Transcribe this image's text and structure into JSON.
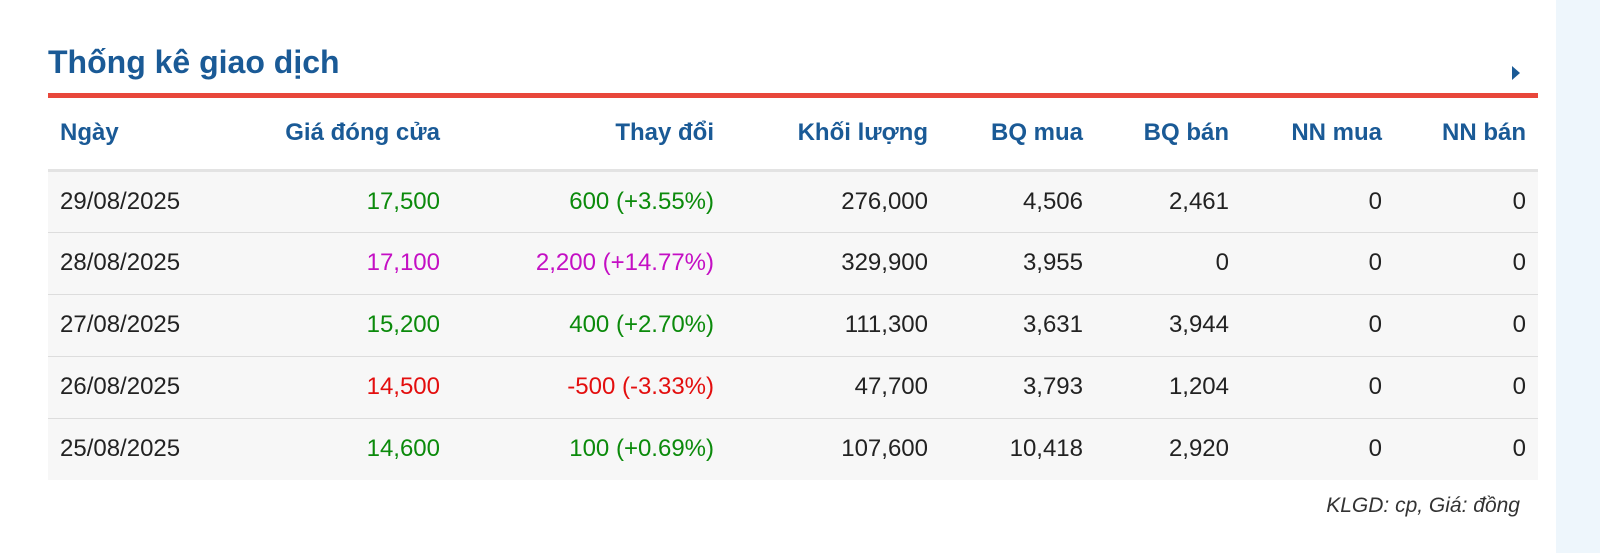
{
  "header": {
    "title": "Thống kê giao dịch"
  },
  "columns": [
    "Ngày",
    "Giá đóng cửa",
    "Thay đổi",
    "Khối lượng",
    "BQ mua",
    "BQ bán",
    "NN mua",
    "NN bán"
  ],
  "rows": [
    {
      "date": "29/08/2025",
      "close": "17,500",
      "change": "600 (+3.55%)",
      "status": "up",
      "volume": "276,000",
      "avg_buy": "4,506",
      "avg_sell": "2,461",
      "foreign_buy": "0",
      "foreign_sell": "0"
    },
    {
      "date": "28/08/2025",
      "close": "17,100",
      "change": "2,200 (+14.77%)",
      "status": "ceiling",
      "volume": "329,900",
      "avg_buy": "3,955",
      "avg_sell": "0",
      "foreign_buy": "0",
      "foreign_sell": "0"
    },
    {
      "date": "27/08/2025",
      "close": "15,200",
      "change": "400 (+2.70%)",
      "status": "up",
      "volume": "111,300",
      "avg_buy": "3,631",
      "avg_sell": "3,944",
      "foreign_buy": "0",
      "foreign_sell": "0"
    },
    {
      "date": "26/08/2025",
      "close": "14,500",
      "change": "-500 (-3.33%)",
      "status": "down",
      "volume": "47,700",
      "avg_buy": "3,793",
      "avg_sell": "1,204",
      "foreign_buy": "0",
      "foreign_sell": "0"
    },
    {
      "date": "25/08/2025",
      "close": "14,600",
      "change": "100 (+0.69%)",
      "status": "up",
      "volume": "107,600",
      "avg_buy": "10,418",
      "avg_sell": "2,920",
      "foreign_buy": "0",
      "foreign_sell": "0"
    }
  ],
  "footer_note": "KLGD: cp, Giá: đồng",
  "colors": {
    "accent": "#1a5a96",
    "divider": "#e8473b",
    "up": "#0b8a0b",
    "ceiling": "#c40fc4",
    "down": "#e30e0e"
  },
  "icons": {
    "more": "caret-right-icon"
  }
}
